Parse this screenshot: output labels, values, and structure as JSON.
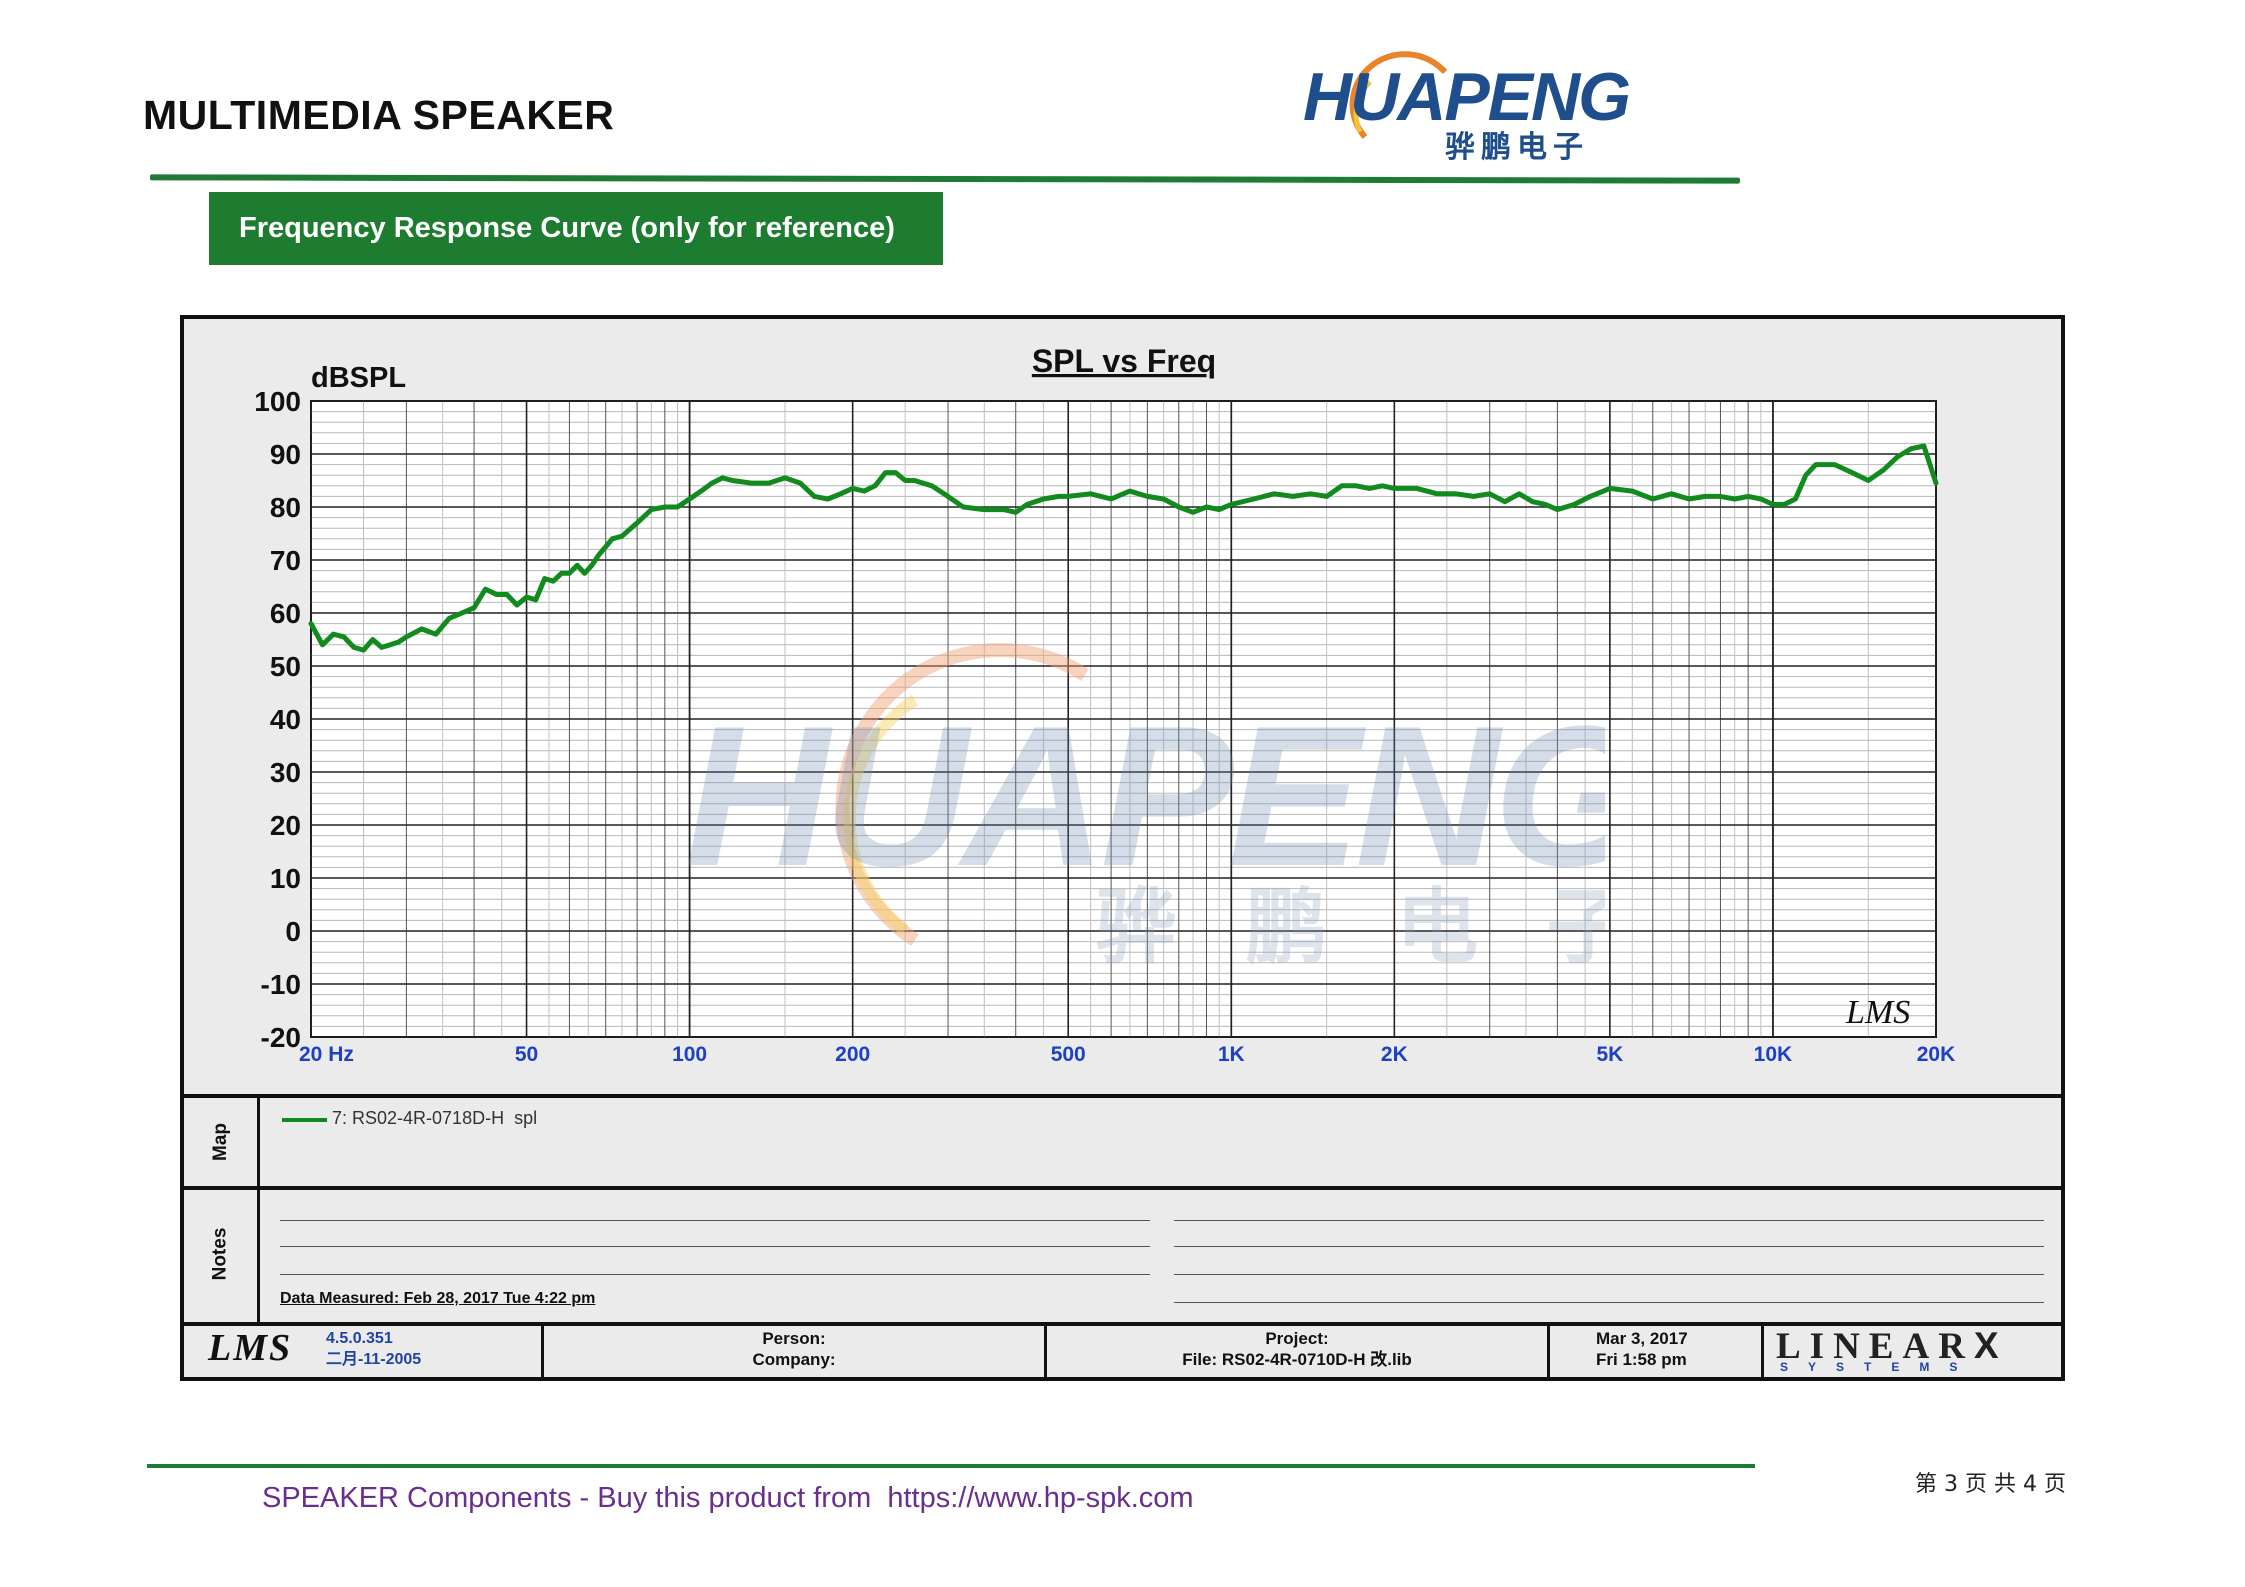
{
  "header": {
    "title": "MULTIMEDIA SPEAKER",
    "logo_text": "HUAPENG",
    "logo_cn": "骅鹏电子",
    "colors": {
      "logo_blue": "#1f4e8c",
      "logo_orange": "#e8842a",
      "accent_green": "#1d7c2f"
    }
  },
  "section": {
    "banner": "Frequency Response Curve (only for reference)"
  },
  "watermark": {
    "text": "HUAPENG",
    "cn": "骅 鹏 电 子"
  },
  "chart_data": {
    "type": "line",
    "title": "SPL vs Freq",
    "ylabel": "dBSPL",
    "xlabel": "Hz",
    "x_scale": "log",
    "xlim": [
      20,
      20000
    ],
    "ylim": [
      -20,
      100
    ],
    "grid": true,
    "x_ticks": [
      {
        "value": 20,
        "label": "20  Hz"
      },
      {
        "value": 50,
        "label": "50"
      },
      {
        "value": 100,
        "label": "100"
      },
      {
        "value": 200,
        "label": "200"
      },
      {
        "value": 500,
        "label": "500"
      },
      {
        "value": 1000,
        "label": "1K"
      },
      {
        "value": 2000,
        "label": "2K"
      },
      {
        "value": 5000,
        "label": "5K"
      },
      {
        "value": 10000,
        "label": "10K"
      },
      {
        "value": 20000,
        "label": "20K"
      }
    ],
    "y_ticks": [
      100,
      90,
      80,
      70,
      60,
      50,
      40,
      30,
      20,
      10,
      0,
      -10,
      -20
    ],
    "series": [
      {
        "name": "7: RS02-4R-0718D-H  spl",
        "color": "#118a1e",
        "x": [
          20,
          21,
          22,
          23,
          24,
          25,
          26,
          27,
          28,
          29,
          30,
          32,
          34,
          36,
          38,
          40,
          42,
          44,
          46,
          48,
          50,
          52,
          54,
          56,
          58,
          60,
          62,
          64,
          66,
          68,
          70,
          72,
          75,
          80,
          85,
          90,
          95,
          100,
          105,
          110,
          115,
          120,
          130,
          140,
          150,
          160,
          170,
          180,
          190,
          200,
          210,
          220,
          230,
          240,
          250,
          260,
          280,
          300,
          320,
          350,
          380,
          400,
          420,
          450,
          480,
          500,
          550,
          600,
          650,
          700,
          750,
          800,
          850,
          900,
          950,
          1000,
          1100,
          1200,
          1300,
          1400,
          1500,
          1600,
          1700,
          1800,
          1900,
          2000,
          2200,
          2400,
          2600,
          2800,
          3000,
          3200,
          3400,
          3600,
          3800,
          4000,
          4300,
          4600,
          5000,
          5500,
          6000,
          6500,
          7000,
          7500,
          8000,
          8500,
          9000,
          9500,
          10000,
          10500,
          11000,
          11500,
          12000,
          13000,
          14000,
          15000,
          16000,
          17000,
          18000,
          19000,
          20000
        ],
        "y": [
          58,
          54,
          56,
          55.5,
          53.5,
          53,
          55,
          53.5,
          54,
          54.5,
          55.5,
          57,
          56,
          59,
          60,
          61,
          64.5,
          63.5,
          63.5,
          61.5,
          63,
          62.5,
          66.5,
          66,
          67.5,
          67.5,
          69,
          67.5,
          69,
          71,
          72.5,
          74,
          74.5,
          77,
          79.5,
          80,
          80,
          81.5,
          83,
          84.5,
          85.5,
          85,
          84.5,
          84.5,
          85.5,
          84.5,
          82,
          81.5,
          82.5,
          83.5,
          83,
          84,
          86.5,
          86.5,
          85,
          85,
          84,
          82,
          80,
          79.5,
          79.5,
          79,
          80.5,
          81.5,
          82,
          82,
          82.5,
          81.5,
          83,
          82,
          81.5,
          80,
          79,
          80,
          79.5,
          80.5,
          81.5,
          82.5,
          82,
          82.5,
          82,
          84,
          84,
          83.5,
          84,
          83.5,
          83.5,
          82.5,
          82.5,
          82,
          82.5,
          81,
          82.5,
          81,
          80.5,
          79.5,
          80.5,
          82,
          83.5,
          83,
          81.5,
          82.5,
          81.5,
          82,
          82,
          81.5,
          82,
          81.5,
          80.5,
          80.5,
          81.5,
          86,
          88,
          88,
          86.5,
          85,
          87,
          89.5,
          91,
          91.5,
          84.5
        ]
      }
    ]
  },
  "map": {
    "label": "Map",
    "legend": "7: RS02-4R-0718D-H  spl"
  },
  "notes": {
    "label": "Notes",
    "measured": "Data Measured: Feb 28, 2017  Tue  4:22 pm"
  },
  "footer_block": {
    "lms_logo": "LMS",
    "version": "4.5.0.351",
    "version_date": "二月-11-2005",
    "person_label": "Person:",
    "company_label": "Company:",
    "project_label": "Project:",
    "file_label": "File: RS02-4R-0710D-H 改.lib",
    "date1": "Mar  3, 2017",
    "date2": "Fri  1:58 pm",
    "brand": "LINEAR",
    "brand_x": "X",
    "brand_sub": "SYSTEMS"
  },
  "chart_watermark_lms": "LMS",
  "page_footer": {
    "text": "SPEAKER Components - Buy this product from  https://www.hp-spk.com",
    "page": "第 3 页 共 4 页"
  }
}
